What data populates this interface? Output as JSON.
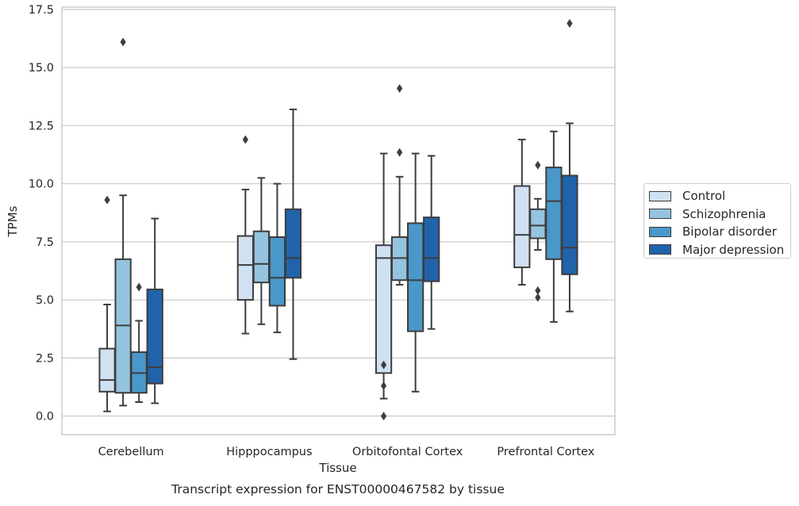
{
  "chart_data": {
    "type": "box",
    "xlabel": "Tissue",
    "ylabel": "TPMs",
    "caption": "Transcript expression for ENST00000467582 by tissue",
    "categories": [
      "Cerebellum",
      "Hipppocampus",
      "Orbitofontal Cortex",
      "Prefrontal Cortex"
    ],
    "ylim": [
      -0.8,
      17.6
    ],
    "yticks": [
      "0.0",
      "2.5",
      "5.0",
      "7.5",
      "10.0",
      "12.5",
      "15.0",
      "17.5"
    ],
    "ytick_values": [
      0,
      2.5,
      5,
      7.5,
      10,
      12.5,
      15,
      17.5
    ],
    "grid": true,
    "legend_position": "right",
    "series": [
      {
        "name": "Control",
        "color": "#d0e1f2",
        "boxes": [
          {
            "whislo": 0.2,
            "q1": 1.05,
            "med": 1.55,
            "q3": 2.9,
            "whishi": 4.8,
            "fliers": [
              9.3
            ]
          },
          {
            "whislo": 3.55,
            "q1": 5.0,
            "med": 6.5,
            "q3": 7.75,
            "whishi": 9.75,
            "fliers": [
              11.9
            ]
          },
          {
            "whislo": 0.75,
            "q1": 1.85,
            "med": 6.8,
            "q3": 7.35,
            "whishi": 11.3,
            "fliers": [
              2.2,
              1.3,
              0.0
            ]
          },
          {
            "whislo": 5.65,
            "q1": 6.4,
            "med": 7.8,
            "q3": 9.9,
            "whishi": 11.9,
            "fliers": []
          }
        ]
      },
      {
        "name": "Schizophrenia",
        "color": "#94c4df",
        "boxes": [
          {
            "whislo": 0.45,
            "q1": 1.0,
            "med": 3.9,
            "q3": 6.75,
            "whishi": 9.5,
            "fliers": [
              16.1
            ]
          },
          {
            "whislo": 3.95,
            "q1": 5.75,
            "med": 6.55,
            "q3": 7.95,
            "whishi": 10.25,
            "fliers": []
          },
          {
            "whislo": 5.65,
            "q1": 5.85,
            "med": 6.8,
            "q3": 7.7,
            "whishi": 10.3,
            "fliers": [
              14.1,
              11.35
            ]
          },
          {
            "whislo": 7.15,
            "q1": 7.65,
            "med": 8.2,
            "q3": 8.9,
            "whishi": 9.35,
            "fliers": [
              10.8,
              5.4,
              5.1
            ]
          }
        ]
      },
      {
        "name": "Bipolar disorder",
        "color": "#4a98c9",
        "boxes": [
          {
            "whislo": 0.6,
            "q1": 1.0,
            "med": 1.85,
            "q3": 2.75,
            "whishi": 4.1,
            "fliers": [
              5.55
            ]
          },
          {
            "whislo": 3.6,
            "q1": 4.75,
            "med": 5.95,
            "q3": 7.7,
            "whishi": 10.0,
            "fliers": []
          },
          {
            "whislo": 1.05,
            "q1": 3.65,
            "med": 5.85,
            "q3": 8.3,
            "whishi": 11.3,
            "fliers": []
          },
          {
            "whislo": 4.05,
            "q1": 6.75,
            "med": 9.25,
            "q3": 10.7,
            "whishi": 12.25,
            "fliers": []
          }
        ]
      },
      {
        "name": "Major depression",
        "color": "#2163aa",
        "boxes": [
          {
            "whislo": 0.55,
            "q1": 1.4,
            "med": 2.1,
            "q3": 5.45,
            "whishi": 8.5,
            "fliers": []
          },
          {
            "whislo": 2.45,
            "q1": 5.95,
            "med": 6.8,
            "q3": 8.9,
            "whishi": 13.2,
            "fliers": []
          },
          {
            "whislo": 3.75,
            "q1": 5.8,
            "med": 6.8,
            "q3": 8.55,
            "whishi": 11.2,
            "fliers": []
          },
          {
            "whislo": 4.5,
            "q1": 6.1,
            "med": 7.25,
            "q3": 10.35,
            "whishi": 12.6,
            "fliers": [
              16.9
            ]
          }
        ]
      }
    ]
  }
}
